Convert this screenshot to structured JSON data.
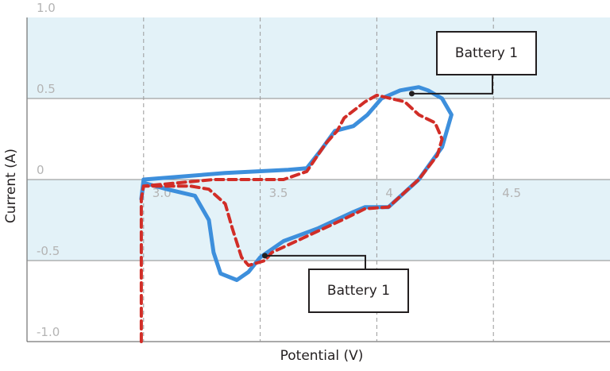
{
  "chart_data": {
    "type": "line",
    "xlabel": "Potential (V)",
    "ylabel": "Current (A)",
    "xlim": [
      2.5,
      5.0
    ],
    "ylim": [
      -1.0,
      1.0
    ],
    "x_ticks": [
      "3.0",
      "3.5",
      "4",
      "4.5"
    ],
    "y_ticks": [
      "1.0",
      "0.5",
      "0",
      "-0.5",
      "-1.0"
    ],
    "grid": true,
    "series": [
      {
        "style": "solid",
        "color": "#3d8fdc",
        "points": [
          [
            2.99,
            -0.12
          ],
          [
            3.0,
            0.0
          ],
          [
            3.35,
            0.04
          ],
          [
            3.62,
            0.06
          ],
          [
            3.7,
            0.07
          ],
          [
            3.76,
            0.18
          ],
          [
            3.82,
            0.3
          ],
          [
            3.9,
            0.33
          ],
          [
            3.96,
            0.4
          ],
          [
            4.02,
            0.5
          ],
          [
            4.1,
            0.55
          ],
          [
            4.18,
            0.57
          ],
          [
            4.22,
            0.55
          ],
          [
            4.28,
            0.5
          ],
          [
            4.32,
            0.4
          ],
          [
            4.28,
            0.2
          ],
          [
            4.18,
            0.0
          ],
          [
            4.05,
            -0.17
          ],
          [
            3.95,
            -0.17
          ],
          [
            3.9,
            -0.2
          ],
          [
            3.75,
            -0.3
          ],
          [
            3.6,
            -0.38
          ],
          [
            3.5,
            -0.48
          ],
          [
            3.45,
            -0.57
          ],
          [
            3.4,
            -0.62
          ],
          [
            3.33,
            -0.58
          ],
          [
            3.3,
            -0.45
          ],
          [
            3.28,
            -0.25
          ],
          [
            3.22,
            -0.1
          ],
          [
            3.1,
            -0.06
          ],
          [
            3.0,
            -0.02
          ],
          [
            2.99,
            -0.12
          ]
        ]
      },
      {
        "style": "dashed",
        "color": "#d12d27",
        "points": [
          [
            2.99,
            -1.0
          ],
          [
            2.99,
            -0.12
          ],
          [
            3.0,
            -0.04
          ],
          [
            3.2,
            -0.04
          ],
          [
            3.28,
            -0.06
          ],
          [
            3.35,
            -0.15
          ],
          [
            3.38,
            -0.3
          ],
          [
            3.42,
            -0.48
          ],
          [
            3.45,
            -0.53
          ],
          [
            3.52,
            -0.5
          ],
          [
            3.55,
            -0.45
          ],
          [
            3.7,
            -0.35
          ],
          [
            3.85,
            -0.25
          ],
          [
            3.95,
            -0.18
          ],
          [
            4.05,
            -0.17
          ],
          [
            4.18,
            0.0
          ],
          [
            4.26,
            0.15
          ],
          [
            4.28,
            0.25
          ],
          [
            4.25,
            0.35
          ],
          [
            4.18,
            0.4
          ],
          [
            4.12,
            0.48
          ],
          [
            4.0,
            0.52
          ],
          [
            3.95,
            0.48
          ],
          [
            3.86,
            0.38
          ],
          [
            3.83,
            0.3
          ],
          [
            3.78,
            0.22
          ],
          [
            3.7,
            0.05
          ],
          [
            3.6,
            0.0
          ],
          [
            3.3,
            0.0
          ],
          [
            3.0,
            -0.04
          ]
        ]
      }
    ],
    "annotations": [
      {
        "label": "Battery 1",
        "x": 4.15,
        "y": 0.53
      },
      {
        "label": "Battery 1",
        "x": 3.52,
        "y": -0.47
      }
    ]
  }
}
